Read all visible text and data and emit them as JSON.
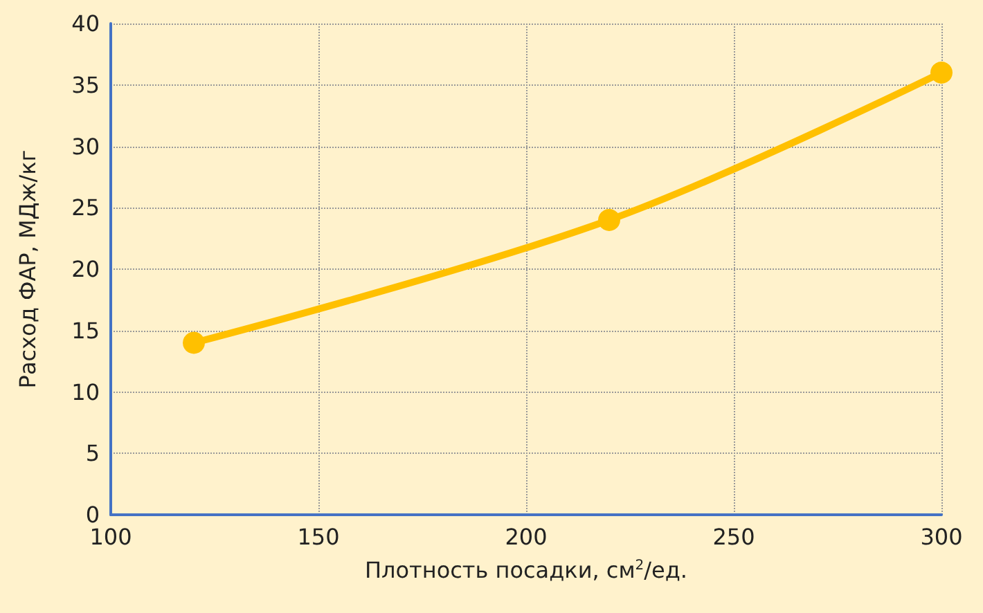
{
  "chart_data": {
    "type": "line",
    "xlabel": "Плотность посадки, см$^{2}$/ед.",
    "ylabel": "Расход ФАР, МДж/кг",
    "x": [
      120,
      220,
      300
    ],
    "series": [
      {
        "color": "#ffc000",
        "values": [
          14,
          24,
          36
        ]
      }
    ],
    "xlim": [
      100,
      300
    ],
    "xticks": [
      100,
      150,
      200,
      250,
      300
    ],
    "ylim": [
      0,
      40
    ],
    "yticks": [
      0,
      5,
      10,
      15,
      20,
      25,
      30,
      35,
      40
    ],
    "grid": true,
    "marker": "circle",
    "line_style": "solid"
  }
}
